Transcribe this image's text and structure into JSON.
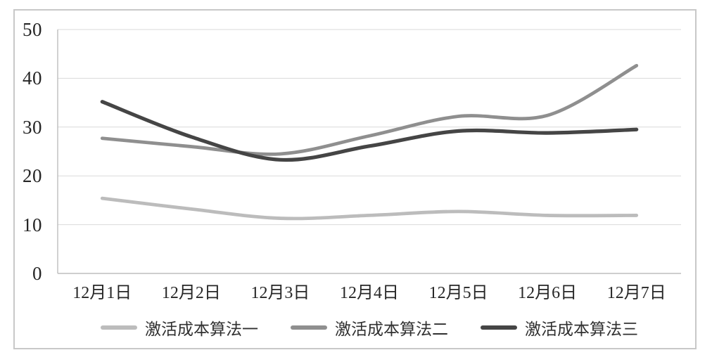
{
  "figure": {
    "background": "#ffffff",
    "border_color": "#c8c8c8"
  },
  "chart_data": {
    "type": "line",
    "title": "",
    "xlabel": "",
    "ylabel": "",
    "categories": [
      "12月1日",
      "12月2日",
      "12月3日",
      "12月4日",
      "12月5日",
      "12月6日",
      "12月7日"
    ],
    "series": [
      {
        "name": "激活成本算法一",
        "color": "#bcbcbc",
        "values": [
          15.4,
          13.2,
          11.3,
          11.9,
          12.7,
          11.9,
          11.9
        ]
      },
      {
        "name": "激活成本算法二",
        "color": "#8f8f8f",
        "values": [
          27.7,
          26.0,
          24.5,
          28.2,
          32.2,
          32.4,
          42.6
        ]
      },
      {
        "name": "激活成本算法三",
        "color": "#454545",
        "values": [
          35.2,
          28.0,
          23.3,
          26.1,
          29.2,
          28.8,
          29.5
        ]
      }
    ],
    "yticks": [
      0,
      10,
      20,
      30,
      40,
      50
    ],
    "ylim": [
      0,
      50
    ],
    "grid": true,
    "line_style": "smooth",
    "legend_position": "bottom",
    "gridline_color": "#d9d9d9",
    "axis_line_color": "#bdbdbd",
    "text_color": "#262626"
  }
}
